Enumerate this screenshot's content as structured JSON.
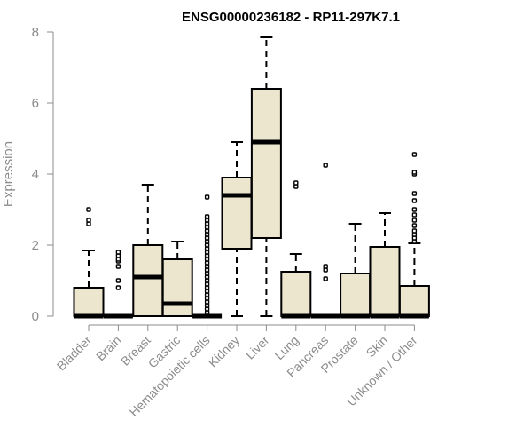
{
  "chart_data": {
    "type": "boxplot",
    "title": "ENSG00000236182 - RP11-297K7.1",
    "xlabel": "",
    "ylabel": "Expression",
    "ylim": [
      0,
      8
    ],
    "yticks": [
      0,
      2,
      4,
      6,
      8
    ],
    "grid": false,
    "legend": "none",
    "colors": {
      "box_fill": "#ede6cf",
      "outline": "#000000",
      "axis": "#8c8c8c",
      "text": "#8c8c8c"
    },
    "categories": [
      "Bladder",
      "Brain",
      "Breast",
      "Gastric",
      "Hematopoietic cells",
      "Kidney",
      "Liver",
      "Lung",
      "Pancreas",
      "Prostate",
      "Skin",
      "Unknown / Other"
    ],
    "boxes": [
      {
        "category": "Bladder",
        "whisker_low": 0,
        "q1": 0,
        "median": 0,
        "q3": 0.8,
        "whisker_high": 1.85,
        "outliers": [
          2.6,
          2.7,
          3.0
        ]
      },
      {
        "category": "Brain",
        "whisker_low": 0,
        "q1": 0,
        "median": 0,
        "q3": 0,
        "whisker_high": 0,
        "outliers": [
          0.8,
          1.0,
          1.4,
          1.55,
          1.6,
          1.7,
          1.8
        ]
      },
      {
        "category": "Breast",
        "whisker_low": 0,
        "q1": 0,
        "median": 1.1,
        "q3": 2.0,
        "whisker_high": 3.7,
        "outliers": []
      },
      {
        "category": "Gastric",
        "whisker_low": 0,
        "q1": 0,
        "median": 0.35,
        "q3": 1.6,
        "whisker_high": 2.1,
        "outliers": []
      },
      {
        "category": "Hematopoietic cells",
        "whisker_low": 0,
        "q1": 0,
        "median": 0,
        "q3": 0,
        "whisker_high": 0,
        "outliers": [
          0.1,
          0.2,
          0.3,
          0.4,
          0.5,
          0.6,
          0.7,
          0.8,
          0.9,
          1.0,
          1.1,
          1.2,
          1.3,
          1.4,
          1.5,
          1.6,
          1.7,
          1.8,
          1.9,
          2.0,
          2.1,
          2.2,
          2.3,
          2.4,
          2.5,
          2.6,
          2.7,
          2.8,
          3.35
        ]
      },
      {
        "category": "Kidney",
        "whisker_low": 0,
        "q1": 1.9,
        "median": 3.4,
        "q3": 3.9,
        "whisker_high": 4.9,
        "outliers": []
      },
      {
        "category": "Liver",
        "whisker_low": 0,
        "q1": 2.2,
        "median": 4.9,
        "q3": 6.4,
        "whisker_high": 7.85,
        "outliers": []
      },
      {
        "category": "Lung",
        "whisker_low": 0,
        "q1": 0,
        "median": 0,
        "q3": 1.25,
        "whisker_high": 1.75,
        "outliers": [
          3.65,
          3.75
        ]
      },
      {
        "category": "Pancreas",
        "whisker_low": 0,
        "q1": 0,
        "median": 0,
        "q3": 0,
        "whisker_high": 0,
        "outliers": [
          1.05,
          1.3,
          1.4,
          4.25
        ]
      },
      {
        "category": "Prostate",
        "whisker_low": 0,
        "q1": 0,
        "median": 0,
        "q3": 1.2,
        "whisker_high": 2.6,
        "outliers": []
      },
      {
        "category": "Skin",
        "whisker_low": 0,
        "q1": 0,
        "median": 0,
        "q3": 1.95,
        "whisker_high": 2.9,
        "outliers": []
      },
      {
        "category": "Unknown / Other",
        "whisker_low": 0,
        "q1": 0,
        "median": 0,
        "q3": 0.85,
        "whisker_high": 2.05,
        "outliers": [
          2.1,
          2.2,
          2.3,
          2.4,
          2.55,
          2.7,
          2.85,
          3.0,
          3.25,
          3.45,
          4.0,
          4.05,
          4.55
        ]
      }
    ]
  }
}
